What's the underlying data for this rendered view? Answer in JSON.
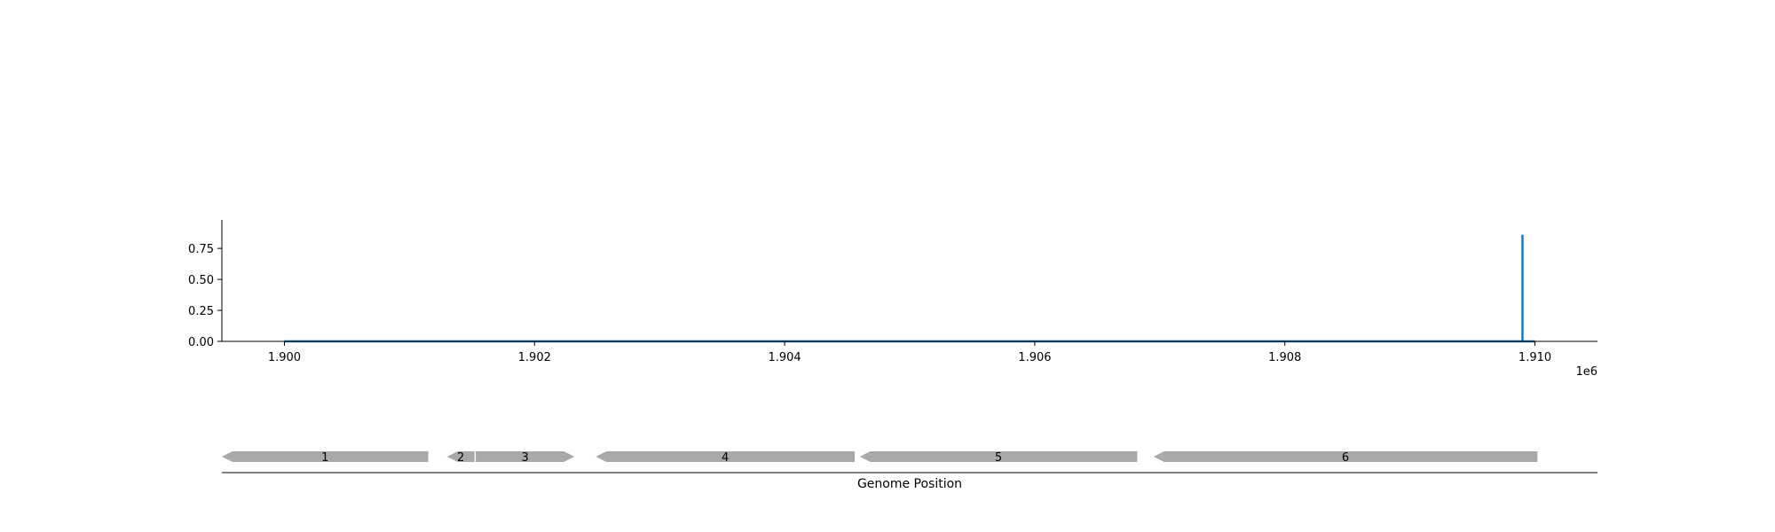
{
  "chart_data": [
    {
      "type": "line",
      "title": "",
      "xlabel": "",
      "ylabel": "",
      "x_offset_label": "1e6",
      "xlim": [
        1899500,
        1910500
      ],
      "ylim": [
        0,
        0.98
      ],
      "xticks": [
        1900000,
        1902000,
        1904000,
        1906000,
        1908000,
        1910000
      ],
      "xtick_labels": [
        "1.900",
        "1.902",
        "1.904",
        "1.906",
        "1.908",
        "1.910"
      ],
      "yticks": [
        0,
        0.25,
        0.5,
        0.75
      ],
      "ytick_labels": [
        "0.00",
        "0.25",
        "0.50",
        "0.75"
      ],
      "grid": false,
      "series": [
        {
          "color": "#1f77b4",
          "x": [
            1900000,
            1909900,
            1909900,
            1909900,
            1910000
          ],
          "y": [
            0,
            0,
            0.86,
            0,
            0
          ]
        }
      ]
    },
    {
      "type": "gene_track",
      "xlabel": "Genome Position",
      "xlim": [
        1899500,
        1910500
      ],
      "features": [
        {
          "label": "1",
          "start": 1899500,
          "end": 1901150,
          "strand": -1
        },
        {
          "label": "2",
          "start": 1901300,
          "end": 1901520,
          "strand": -1
        },
        {
          "label": "3",
          "start": 1901530,
          "end": 1902320,
          "strand": 1
        },
        {
          "label": "4",
          "start": 1902490,
          "end": 1904560,
          "strand": -1
        },
        {
          "label": "5",
          "start": 1904600,
          "end": 1906820,
          "strand": -1
        },
        {
          "label": "6",
          "start": 1906950,
          "end": 1910020,
          "strand": -1
        }
      ],
      "feature_color": "#a9a9a9"
    }
  ]
}
